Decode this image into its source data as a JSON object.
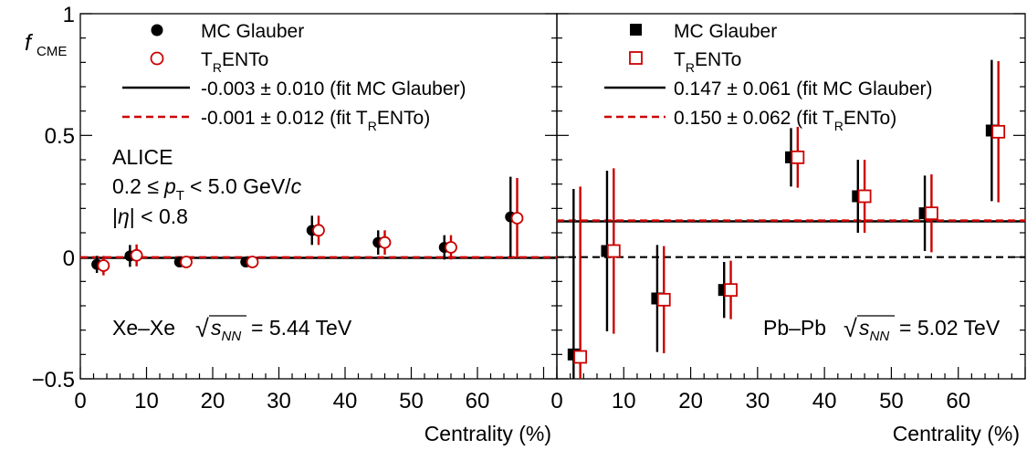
{
  "figure": {
    "ylabel_main": "f",
    "ylabel_sub": "CME",
    "xlabel": "Centrality (%)",
    "y_ticks": [
      "1",
      "0.5",
      "0",
      "−0.5"
    ],
    "x_ticks": [
      "0",
      "10",
      "20",
      "30",
      "40",
      "50",
      "60"
    ]
  },
  "chart_data": [
    {
      "type": "scatter",
      "panel": "left",
      "xlabel": "Centrality (%)",
      "ylabel": "f_CME",
      "xlim": [
        0,
        72
      ],
      "ylim": [
        -0.5,
        1
      ],
      "grid": false,
      "legend_position": "top",
      "system_label": {
        "text": "Xe–Xe",
        "sqrt_symbol": "√",
        "s_label": "s",
        "s_sub": "NN",
        "energy": "= 5.44 TeV"
      },
      "alice_block": {
        "title": "ALICE",
        "pt_prefix": "0.2 ≤",
        "pt_var": "p",
        "pt_sub": "T",
        "pt_suffix": "< 5.0 GeV/",
        "pt_c": "c",
        "eta_open": "|",
        "eta_var": "η",
        "eta_close": "| < 0.8"
      },
      "series": [
        {
          "name": "MC Glauber",
          "marker": "filled-circle",
          "color": "#000000",
          "x": [
            2.5,
            7.5,
            15,
            25,
            35,
            45,
            55,
            65
          ],
          "y": [
            -0.03,
            0.005,
            -0.02,
            -0.02,
            0.11,
            0.06,
            0.04,
            0.165
          ],
          "err": [
            0.035,
            0.045,
            0.02,
            0.02,
            0.06,
            0.05,
            0.05,
            0.165
          ]
        },
        {
          "name": "T_RENTo",
          "name_main": "T",
          "name_sub": "R",
          "name_rest": "ENTo",
          "marker": "open-circle",
          "color": "#cc0000",
          "x": [
            3.5,
            8.5,
            16,
            26,
            36,
            46,
            56,
            66
          ],
          "y": [
            -0.035,
            0.007,
            -0.02,
            -0.02,
            0.11,
            0.06,
            0.04,
            0.16
          ],
          "err": [
            0.04,
            0.045,
            0.02,
            0.02,
            0.06,
            0.05,
            0.05,
            0.165
          ]
        }
      ],
      "fits": [
        {
          "label": "-0.003 ± 0.010 (fit MC Glauber)",
          "value": -0.003,
          "style": "solid",
          "color": "#000000"
        },
        {
          "label_pre": "-0.001 ± 0.012 (fit T",
          "label_sub": "R",
          "label_post": "ENTo)",
          "value": -0.001,
          "style": "dashed",
          "color": "#cc0000"
        }
      ]
    },
    {
      "type": "scatter",
      "panel": "right",
      "xlabel": "Centrality (%)",
      "ylabel": "f_CME",
      "xlim": [
        0,
        70
      ],
      "ylim": [
        -0.5,
        1
      ],
      "grid": false,
      "legend_position": "top",
      "system_label": {
        "text": "Pb–Pb",
        "sqrt_symbol": "√",
        "s_label": "s",
        "s_sub": "NN",
        "energy": "= 5.02 TeV"
      },
      "reference_line": {
        "value": 0,
        "style": "dashed",
        "color": "#000000"
      },
      "series": [
        {
          "name": "MC Glauber",
          "marker": "filled-square",
          "color": "#000000",
          "x": [
            2.5,
            7.5,
            15,
            25,
            35,
            45,
            55,
            65
          ],
          "y": [
            -0.4,
            0.025,
            -0.17,
            -0.135,
            0.41,
            0.25,
            0.18,
            0.52
          ],
          "err": [
            0.68,
            0.33,
            0.22,
            0.115,
            0.12,
            0.15,
            0.155,
            0.29
          ]
        },
        {
          "name": "T_RENTo",
          "name_main": "T",
          "name_sub": "R",
          "name_rest": "ENTo",
          "marker": "open-square",
          "color": "#cc0000",
          "x": [
            3.5,
            8.5,
            16,
            26,
            36,
            46,
            56,
            66
          ],
          "y": [
            -0.41,
            0.025,
            -0.175,
            -0.135,
            0.41,
            0.25,
            0.18,
            0.515
          ],
          "err": [
            0.7,
            0.34,
            0.22,
            0.12,
            0.125,
            0.15,
            0.16,
            0.29
          ]
        }
      ],
      "fits": [
        {
          "label": "0.147 ± 0.061 (fit MC Glauber)",
          "value": 0.147,
          "style": "solid",
          "color": "#000000"
        },
        {
          "label_pre": "0.150 ± 0.062 (fit T",
          "label_sub": "R",
          "label_post": "ENTo)",
          "value": 0.15,
          "style": "dashed",
          "color": "#cc0000"
        }
      ]
    }
  ]
}
